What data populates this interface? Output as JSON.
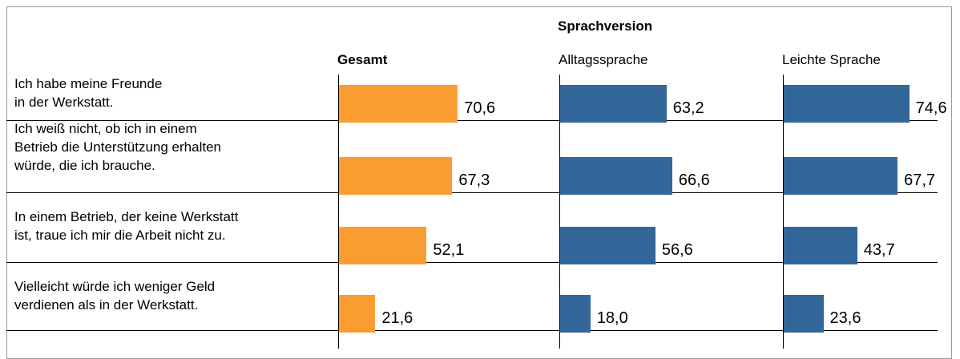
{
  "chart_data": {
    "type": "bar",
    "group_title": "Sprachversion",
    "categories": [
      "Ich habe meine Freunde\nin der Werkstatt.",
      "Ich weiß nicht, ob ich in einem\nBetrieb die Unterstützung erhalten\nwürde, die ich brauche.",
      "In einem Betrieb, der keine Werkstatt\nist, traue ich mir die Arbeit nicht zu.",
      "Vielleicht würde ich weniger Geld\nverdienen als in der Werkstatt."
    ],
    "xlim": [
      0,
      100
    ],
    "series": [
      {
        "name": "Gesamt",
        "color": "#f99d33",
        "values": [
          70.6,
          67.3,
          52.1,
          21.6
        ],
        "value_labels": [
          "70,6",
          "67,3",
          "52,1",
          "21,6"
        ]
      },
      {
        "name": "Alltagssprache",
        "color": "#336699",
        "values": [
          63.2,
          66.6,
          56.6,
          18.0
        ],
        "value_labels": [
          "63,2",
          "66,6",
          "56,6",
          "18,0"
        ]
      },
      {
        "name": "Leichte Sprache",
        "color": "#336699",
        "values": [
          74.6,
          67.7,
          43.7,
          23.6
        ],
        "value_labels": [
          "74,6",
          "67,7",
          "43,7",
          "23,6"
        ]
      }
    ]
  }
}
